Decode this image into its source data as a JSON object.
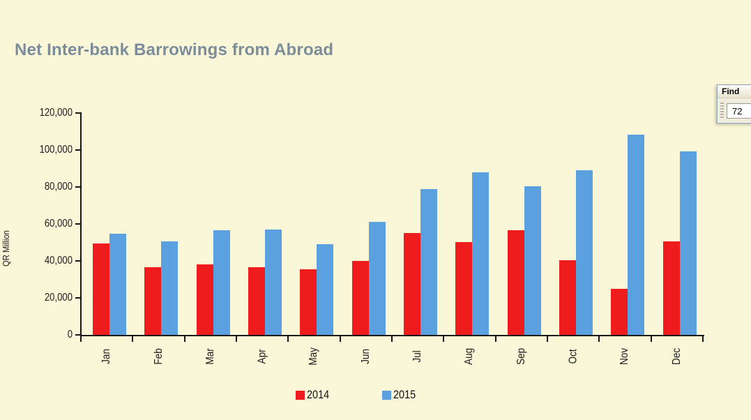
{
  "page": {
    "background_color": "#faf6d8",
    "title_color": "#7b8c9a"
  },
  "chart_data": {
    "type": "bar",
    "title": "Net Inter-bank Barrowings from Abroad",
    "xlabel": "",
    "ylabel": "QR Million",
    "categories": [
      "Jan",
      "Feb",
      "Mar",
      "Apr",
      "May",
      "Jun",
      "Jul",
      "Aug",
      "Sep",
      "Oct",
      "Nov",
      "Dec"
    ],
    "series": [
      {
        "name": "2014",
        "color": "#ee1c1c",
        "values": [
          49500,
          36600,
          38300,
          36600,
          35400,
          40000,
          55100,
          50200,
          56600,
          40300,
          25000,
          50700
        ]
      },
      {
        "name": "2015",
        "color": "#5ba1e0",
        "values": [
          54900,
          50600,
          56600,
          57000,
          49100,
          61200,
          78700,
          88000,
          80200,
          89100,
          108400,
          99300
        ]
      }
    ],
    "ylim": [
      0,
      120000
    ],
    "yticks": [
      0,
      20000,
      40000,
      60000,
      80000,
      100000,
      120000
    ],
    "ytick_labels": [
      "0",
      "20,000",
      "40,000",
      "60,000",
      "80,000",
      "100,000",
      "120,000"
    ],
    "grid": false,
    "legend_position": "bottom-center",
    "axis_color": "#161616"
  },
  "find_box": {
    "title": "Find",
    "value": "72"
  }
}
